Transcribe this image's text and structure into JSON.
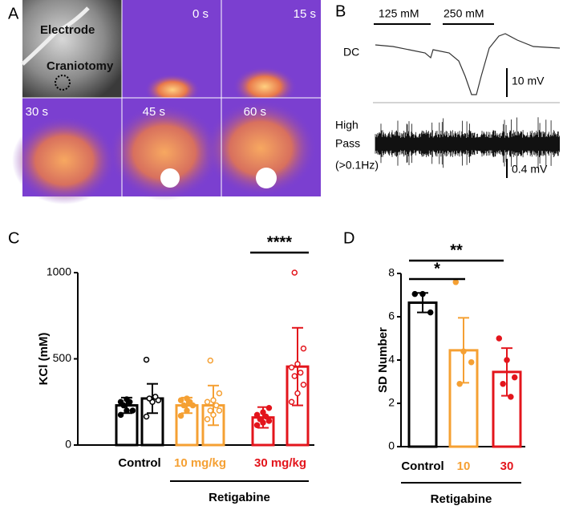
{
  "panels": {
    "A": {
      "label": "A",
      "electrode": "Electrode",
      "craniotomy": "Craniotomy",
      "times": [
        "0 s",
        "15 s",
        "30 s",
        "45 s",
        "60 s"
      ]
    },
    "B": {
      "label": "B",
      "conc": [
        "125 mM",
        "250 mM"
      ],
      "dc": "DC",
      "dc_scale": "10 mV",
      "hp": [
        "High",
        "Pass",
        "(>0.1Hz)"
      ],
      "hp_scale": "0.4 mV"
    }
  },
  "chart_data": [
    {
      "type": "bar",
      "label": "C",
      "ylabel": "KCl (mM)",
      "ylim": [
        0,
        1000
      ],
      "yticks": [
        0,
        500,
        1000
      ],
      "groups": [
        {
          "name": "Control",
          "color": "#000000",
          "values": [
            230,
            270
          ],
          "errors": [
            45,
            85
          ],
          "points": [
            [
              175,
              200,
              200,
              230,
              250,
              250,
              265
            ],
            [
              165,
              250,
              260,
              270,
              280,
              495
            ]
          ]
        },
        {
          "name": "10 mg/kg",
          "color": "#f5a033",
          "values": [
            230,
            230
          ],
          "errors": [
            45,
            115
          ],
          "points": [
            [
              170,
              200,
              230,
              230,
              250,
              260,
              270
            ],
            [
              150,
              175,
              200,
              200,
              230,
              250,
              260,
              300,
              490
            ]
          ]
        },
        {
          "name": "30 mg/kg",
          "color": "#e3151c",
          "values": [
            160,
            455
          ],
          "errors": [
            60,
            225
          ],
          "points": [
            [
              115,
              130,
              140,
              150,
              165,
              175,
              190,
              215
            ],
            [
              250,
              300,
              350,
              400,
              420,
              450,
              470,
              560,
              1000
            ]
          ]
        }
      ],
      "point_styles": [
        "filled",
        "open"
      ],
      "group_label": "Retigabine",
      "significance": [
        "****"
      ]
    },
    {
      "type": "bar",
      "label": "D",
      "ylabel": "SD Number",
      "ylim": [
        0,
        8
      ],
      "yticks": [
        0,
        2,
        4,
        6,
        8
      ],
      "categories": [
        "Control",
        "10",
        "30"
      ],
      "colors": [
        "#000000",
        "#f5a033",
        "#e3151c"
      ],
      "values": [
        6.65,
        4.45,
        3.45
      ],
      "errors": [
        0.45,
        1.5,
        1.1
      ],
      "points": [
        [
          7.05,
          7.05,
          6.2
        ],
        [
          7.6,
          4.4,
          3.9,
          2.9
        ],
        [
          5.0,
          4.0,
          3.2,
          2.9,
          2.3
        ]
      ],
      "group_label": "Retigabine",
      "significance": [
        "*",
        "**"
      ]
    }
  ]
}
